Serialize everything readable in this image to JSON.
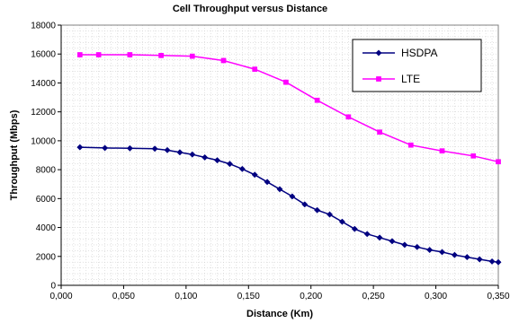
{
  "chart_data": {
    "type": "line",
    "title": "Cell Throughput versus Distance",
    "xlabel": "Distance (Km)",
    "ylabel": "Throughput  (Mbps)",
    "xlim": [
      0,
      0.35
    ],
    "ylim": [
      0,
      18000
    ],
    "x_ticks": [
      0,
      0.05,
      0.1,
      0.15,
      0.2,
      0.25,
      0.3,
      0.35
    ],
    "x_tick_labels": [
      "0,000",
      "0,050",
      "0,100",
      "0,150",
      "0,200",
      "0,250",
      "0,300",
      "0,350"
    ],
    "y_ticks": [
      0,
      2000,
      4000,
      6000,
      8000,
      10000,
      12000,
      14000,
      16000,
      18000
    ],
    "y_tick_labels": [
      "0",
      "2000",
      "4000",
      "6000",
      "8000",
      "10000",
      "12000",
      "14000",
      "16000",
      "18000"
    ],
    "grid": true,
    "legend_position": "top-right",
    "series": [
      {
        "name": "HSDPA",
        "color": "#000080",
        "marker": "diamond",
        "x": [
          0.015,
          0.035,
          0.055,
          0.075,
          0.085,
          0.095,
          0.105,
          0.115,
          0.125,
          0.135,
          0.145,
          0.155,
          0.165,
          0.175,
          0.185,
          0.195,
          0.205,
          0.215,
          0.225,
          0.235,
          0.245,
          0.255,
          0.265,
          0.275,
          0.285,
          0.295,
          0.305,
          0.315,
          0.325,
          0.335,
          0.345,
          0.35
        ],
        "y": [
          9550,
          9500,
          9480,
          9450,
          9350,
          9200,
          9050,
          8850,
          8650,
          8400,
          8050,
          7650,
          7150,
          6650,
          6150,
          5600,
          5200,
          4900,
          4400,
          3900,
          3550,
          3300,
          3050,
          2800,
          2650,
          2450,
          2300,
          2100,
          1950,
          1800,
          1650,
          1600
        ]
      },
      {
        "name": "LTE",
        "color": "#ff00ff",
        "marker": "square",
        "x": [
          0.015,
          0.03,
          0.055,
          0.08,
          0.105,
          0.13,
          0.155,
          0.18,
          0.205,
          0.23,
          0.255,
          0.28,
          0.305,
          0.33,
          0.35
        ],
        "y": [
          15950,
          15950,
          15950,
          15900,
          15850,
          15550,
          14950,
          14050,
          12800,
          11650,
          10600,
          9700,
          9300,
          8950,
          8550
        ]
      }
    ]
  }
}
